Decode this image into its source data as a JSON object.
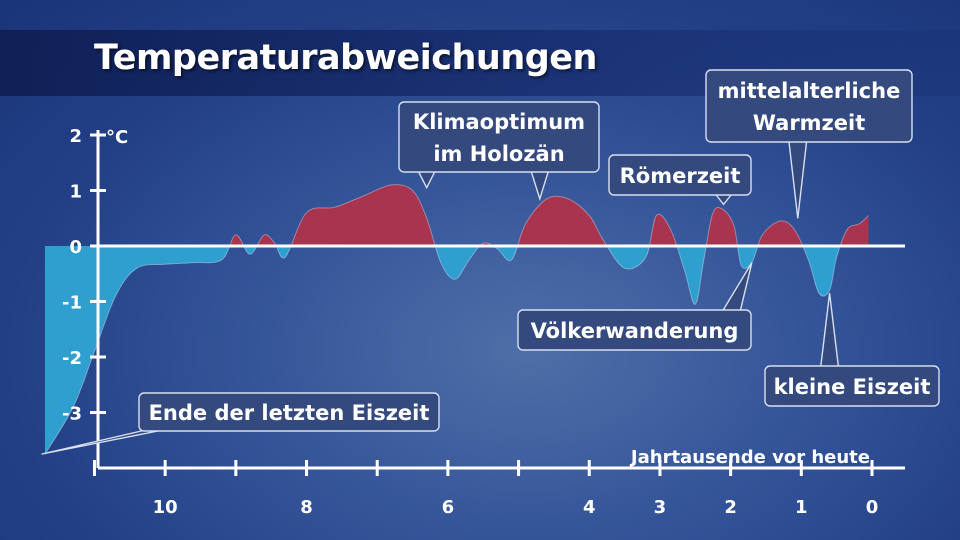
{
  "title": "Temperaturabweichungen",
  "colors": {
    "positive": "#a8344f",
    "negative": "#2f9fd0",
    "axis": "#ffffff",
    "callout_fill": "#34497e"
  },
  "chart_data": {
    "type": "area",
    "title": "Temperaturabweichungen",
    "ylabel": "°C",
    "xlabel": "Jahrtausende vor heute",
    "xlim": [
      11.8,
      0
    ],
    "ylim": [
      -3.8,
      2
    ],
    "xticks": [
      10,
      8,
      6,
      4,
      3,
      2,
      1,
      0
    ],
    "yticks": [
      2,
      1,
      0,
      -1,
      -2,
      -3
    ],
    "ytick_labels": [
      "2",
      "1",
      "0",
      "-1",
      "-2",
      "-3"
    ],
    "x": [
      11.7,
      11.3,
      11.0,
      10.7,
      10.4,
      10.0,
      9.6,
      9.2,
      9.0,
      8.8,
      8.6,
      8.45,
      8.3,
      8.0,
      7.6,
      7.2,
      6.8,
      6.5,
      6.3,
      6.1,
      5.9,
      5.7,
      5.5,
      5.3,
      5.1,
      4.9,
      4.6,
      4.3,
      4.0,
      3.8,
      3.5,
      3.2,
      3.05,
      2.85,
      2.65,
      2.5,
      2.38,
      2.25,
      2.1,
      1.95,
      1.85,
      1.7,
      1.55,
      1.3,
      1.1,
      0.9,
      0.75,
      0.6,
      0.5,
      0.35,
      0.18,
      0.05
    ],
    "y": [
      -3.75,
      -2.9,
      -1.9,
      -0.9,
      -0.4,
      -0.33,
      -0.3,
      -0.25,
      0.2,
      -0.15,
      0.2,
      0.05,
      -0.2,
      0.6,
      0.7,
      0.9,
      1.1,
      1.0,
      0.5,
      -0.3,
      -0.6,
      -0.25,
      0.05,
      -0.05,
      -0.25,
      0.4,
      0.85,
      0.85,
      0.55,
      0.1,
      -0.4,
      -0.2,
      0.55,
      0.3,
      -0.45,
      -1.05,
      -0.25,
      0.6,
      0.65,
      0.35,
      -0.35,
      -0.3,
      0.2,
      0.45,
      0.3,
      -0.25,
      -0.85,
      -0.8,
      -0.2,
      0.3,
      0.4,
      0.55
    ],
    "annotations": [
      {
        "lines": [
          "Ende der letzten Eiszeit"
        ],
        "x": 11.75,
        "y": -3.75
      },
      {
        "lines": [
          "Klimaoptimum",
          "im Holozän"
        ],
        "x": [
          6.3,
          4.7
        ],
        "y": [
          1.05,
          0.85
        ]
      },
      {
        "lines": [
          "Römerzeit"
        ],
        "x": 2.1,
        "y": 0.75
      },
      {
        "lines": [
          "mittelalterliche",
          "Warmzeit"
        ],
        "x": 1.05,
        "y": 0.5
      },
      {
        "lines": [
          "Völkerwanderung"
        ],
        "x": 1.7,
        "y": -0.3
      },
      {
        "lines": [
          "kleine Eiszeit"
        ],
        "x": 0.6,
        "y": -0.85
      }
    ]
  }
}
